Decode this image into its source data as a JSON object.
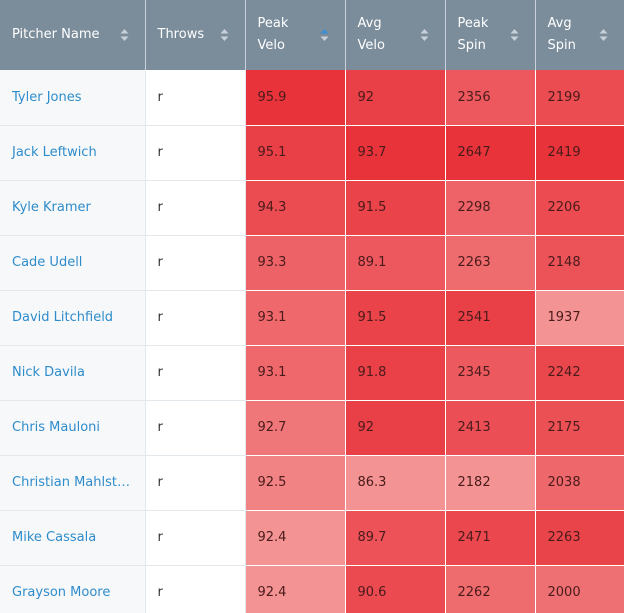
{
  "table": {
    "headers": [
      "Pitcher Name",
      "Throws",
      "Peak Velo",
      "Avg Velo",
      "Peak Spin",
      "Avg Spin"
    ],
    "sorted_column": 2,
    "heat_colors": {
      "low": "#f39393",
      "high": "#e8333b"
    },
    "rows": [
      [
        "Tyler Jones",
        "r",
        95.9,
        92,
        2356,
        2199
      ],
      [
        "Jack Leftwich",
        "r",
        95.1,
        93.7,
        2647,
        2419
      ],
      [
        "Kyle Kramer",
        "r",
        94.3,
        91.5,
        2298,
        2206
      ],
      [
        "Cade Udell",
        "r",
        93.3,
        89.1,
        2263,
        2148
      ],
      [
        "David Litchfield",
        "r",
        93.1,
        91.5,
        2541,
        1937
      ],
      [
        "Nick Davila",
        "r",
        93.1,
        91.8,
        2345,
        2242
      ],
      [
        "Chris Mauloni",
        "r",
        92.7,
        92,
        2413,
        2175
      ],
      [
        "Christian Mahlst…",
        "r",
        92.5,
        86.3,
        2182,
        2038
      ],
      [
        "Mike Cassala",
        "r",
        92.4,
        89.7,
        2471,
        2263
      ],
      [
        "Grayson Moore",
        "r",
        92.4,
        90.6,
        2262,
        2000
      ]
    ]
  }
}
